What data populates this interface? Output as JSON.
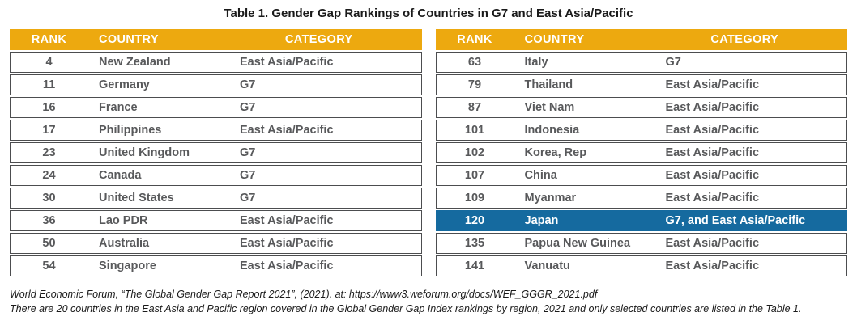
{
  "page": {
    "title": "Table 1. Gender Gap Rankings of Countries in G7 and East Asia/Pacific"
  },
  "columns": {
    "rank": "RANK",
    "country": "COUNTRY",
    "category": "CATEGORY"
  },
  "tables": {
    "left": {
      "rows": [
        {
          "rank": "4",
          "country": "New Zealand",
          "category": "East Asia/Pacific"
        },
        {
          "rank": "11",
          "country": "Germany",
          "category": "G7"
        },
        {
          "rank": "16",
          "country": "France",
          "category": "G7"
        },
        {
          "rank": "17",
          "country": "Philippines",
          "category": "East Asia/Pacific"
        },
        {
          "rank": "23",
          "country": "United Kingdom",
          "category": "G7"
        },
        {
          "rank": "24",
          "country": "Canada",
          "category": "G7"
        },
        {
          "rank": "30",
          "country": "United States",
          "category": "G7"
        },
        {
          "rank": "36",
          "country": "Lao PDR",
          "category": "East Asia/Pacific"
        },
        {
          "rank": "50",
          "country": "Australia",
          "category": "East Asia/Pacific"
        },
        {
          "rank": "54",
          "country": "Singapore",
          "category": "East Asia/Pacific"
        }
      ]
    },
    "right": {
      "rows": [
        {
          "rank": "63",
          "country": "Italy",
          "category": "G7"
        },
        {
          "rank": "79",
          "country": "Thailand",
          "category": "East Asia/Pacific"
        },
        {
          "rank": "87",
          "country": "Viet Nam",
          "category": "East Asia/Pacific"
        },
        {
          "rank": "101",
          "country": "Indonesia",
          "category": "East Asia/Pacific"
        },
        {
          "rank": "102",
          "country": "Korea, Rep",
          "category": "East Asia/Pacific"
        },
        {
          "rank": "107",
          "country": "China",
          "category": "East Asia/Pacific"
        },
        {
          "rank": "109",
          "country": "Myanmar",
          "category": "East Asia/Pacific"
        },
        {
          "rank": "120",
          "country": "Japan",
          "category": "G7, and East Asia/Pacific",
          "highlighted": true
        },
        {
          "rank": "135",
          "country": "Papua New Guinea",
          "category": "East Asia/Pacific"
        },
        {
          "rank": "141",
          "country": "Vanuatu",
          "category": "East Asia/Pacific"
        }
      ]
    }
  },
  "footnotes": {
    "source": "World Economic Forum, “The Global Gender Gap Report 2021”, (2021), at: https://www3.weforum.org/docs/WEF_GGGR_2021.pdf",
    "note": "There are 20 countries in the East Asia and Pacific region covered in the Global Gender Gap Index rankings by region, 2021 and only selected countries are listed in the Table 1."
  },
  "colors": {
    "header_bg": "#EDA90F",
    "header_text": "#FFFFFF",
    "highlight_bg": "#156A9F",
    "highlight_text": "#FFFFFF",
    "row_border": "#4C4D4F",
    "cell_text": "#58595B",
    "title_text": "#1A1A1A"
  }
}
